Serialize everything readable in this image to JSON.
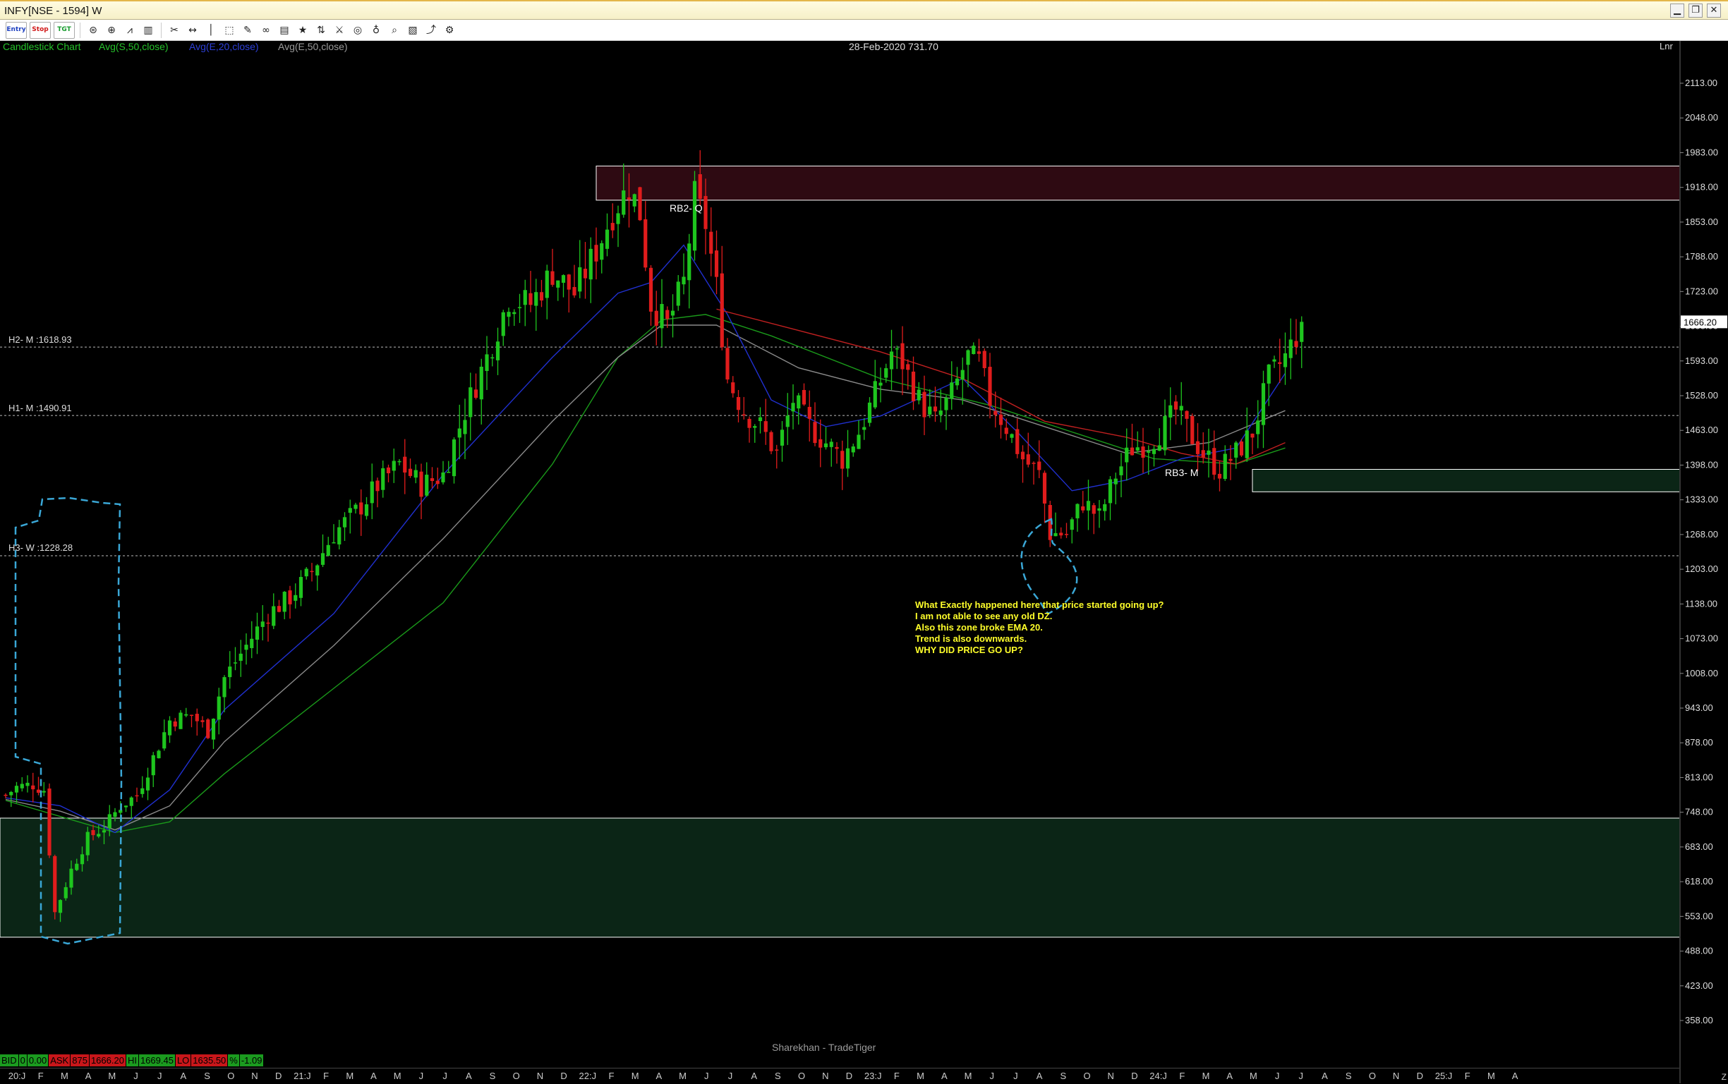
{
  "window": {
    "title": "INFY[NSE - 1594] W"
  },
  "toolbar": {
    "entry": "Entry",
    "stop": "Stop",
    "tgt": "TGT"
  },
  "legend": {
    "chart_type": "Candlestick Chart",
    "s50": "Avg(S,50,close)",
    "e20": "Avg(E,20,close)",
    "e50": "Avg(E,50,close)",
    "colors": {
      "chart_type": "#25c22a",
      "s50": "#25c22a",
      "e20": "#2d3fd8",
      "e50": "#9a9a9a"
    }
  },
  "header": {
    "date_price": "28-Feb-2020 731.70",
    "scale": "Lnr"
  },
  "price_axis": {
    "ticks": [
      "2113.00",
      "2048.00",
      "1983.00",
      "1918.00",
      "1853.00",
      "1788.00",
      "1723.00",
      "1658.00",
      "1593.00",
      "1528.00",
      "1463.00",
      "1398.00",
      "1333.00",
      "1268.00",
      "1203.00",
      "1138.00",
      "1073.00",
      "1008.00",
      "943.00",
      "878.00",
      "813.00",
      "748.00",
      "683.00",
      "618.00",
      "553.00",
      "488.00",
      "423.00",
      "358.00"
    ],
    "last_price": "1666.20"
  },
  "levels": [
    {
      "label": "H2- M :1618.93",
      "value": 1618.93
    },
    {
      "label": "H1- M :1490.91",
      "value": 1490.91
    },
    {
      "label": "H3- W :1228.28",
      "value": 1228.28
    }
  ],
  "zones": [
    {
      "name": "supply-zone-rb2",
      "label": "RB2- Q",
      "kind": "supply",
      "top": 1958,
      "bottom": 1894,
      "from": 108,
      "to": 310
    },
    {
      "name": "demand-zone-rb3",
      "label": "RB3- M",
      "kind": "demand",
      "top": 1390,
      "bottom": 1348,
      "from": 228,
      "to": 310
    },
    {
      "name": "demand-zone-base",
      "label": "",
      "kind": "demand",
      "top": 737,
      "bottom": 514,
      "from": 0,
      "to": 310
    }
  ],
  "annotation": {
    "lines": [
      "What Exactly happened here that price started going up?",
      "I am not able to see any old DZ.",
      "Also this zone broke EMA 20.",
      "Trend is also downwards.",
      "WHY DID PRICE GO UP?"
    ]
  },
  "brand": "Sharekhan - TradeTiger",
  "quotes": [
    {
      "text": "BID",
      "tone": "g"
    },
    {
      "text": "0",
      "tone": "g"
    },
    {
      "text": "0.00",
      "tone": "g"
    },
    {
      "text": "ASK",
      "tone": "r"
    },
    {
      "text": "875",
      "tone": "r"
    },
    {
      "text": "1666.20",
      "tone": "r"
    },
    {
      "text": "HI",
      "tone": "g"
    },
    {
      "text": "1669.45",
      "tone": "g"
    },
    {
      "text": "LO",
      "tone": "r"
    },
    {
      "text": "1635.50",
      "tone": "r"
    },
    {
      "text": "%",
      "tone": "g"
    },
    {
      "text": "-1.09",
      "tone": "g"
    }
  ],
  "time_axis": [
    "20:J",
    "F",
    "M",
    "A",
    "M",
    "J",
    "J",
    "A",
    "S",
    "O",
    "N",
    "D",
    "21:J",
    "F",
    "M",
    "A",
    "M",
    "J",
    "J",
    "A",
    "S",
    "O",
    "N",
    "D",
    "22:J",
    "F",
    "M",
    "A",
    "M",
    "J",
    "J",
    "A",
    "S",
    "O",
    "N",
    "D",
    "23:J",
    "F",
    "M",
    "A",
    "M",
    "J",
    "J",
    "A",
    "S",
    "O",
    "N",
    "D",
    "24:J",
    "F",
    "M",
    "A",
    "M",
    "J",
    "J",
    "A",
    "S",
    "O",
    "N",
    "D",
    "25:J",
    "F",
    "M",
    "A"
  ],
  "chart_data": {
    "type": "candlestick",
    "x_unit": "weeks (Jan 2020 onward)",
    "y_range": [
      320,
      2160
    ],
    "candles": [],
    "anchors": [
      [
        0,
        780
      ],
      [
        2,
        795
      ],
      [
        5,
        800
      ],
      [
        7,
        790
      ],
      [
        9,
        560
      ],
      [
        12,
        640
      ],
      [
        15,
        700
      ],
      [
        18,
        720
      ],
      [
        21,
        760
      ],
      [
        24,
        780
      ],
      [
        27,
        850
      ],
      [
        30,
        920
      ],
      [
        34,
        930
      ],
      [
        37,
        900
      ],
      [
        40,
        1000
      ],
      [
        44,
        1060
      ],
      [
        48,
        1120
      ],
      [
        52,
        1150
      ],
      [
        56,
        1200
      ],
      [
        60,
        1270
      ],
      [
        64,
        1310
      ],
      [
        68,
        1360
      ],
      [
        72,
        1400
      ],
      [
        76,
        1360
      ],
      [
        80,
        1380
      ],
      [
        84,
        1500
      ],
      [
        88,
        1600
      ],
      [
        92,
        1710
      ],
      [
        96,
        1700
      ],
      [
        100,
        1760
      ],
      [
        104,
        1720
      ],
      [
        108,
        1800
      ],
      [
        111,
        1870
      ],
      [
        114,
        1920
      ],
      [
        116,
        1870
      ],
      [
        118,
        1700
      ],
      [
        121,
        1660
      ],
      [
        124,
        1740
      ],
      [
        126,
        1900
      ],
      [
        128,
        1850
      ],
      [
        130,
        1730
      ],
      [
        132,
        1560
      ],
      [
        135,
        1500
      ],
      [
        138,
        1470
      ],
      [
        141,
        1420
      ],
      [
        144,
        1520
      ],
      [
        147,
        1470
      ],
      [
        150,
        1440
      ],
      [
        153,
        1410
      ],
      [
        156,
        1460
      ],
      [
        159,
        1530
      ],
      [
        162,
        1610
      ],
      [
        164,
        1590
      ],
      [
        167,
        1520
      ],
      [
        170,
        1480
      ],
      [
        173,
        1530
      ],
      [
        176,
        1600
      ],
      [
        178,
        1590
      ],
      [
        180,
        1520
      ],
      [
        183,
        1470
      ],
      [
        186,
        1410
      ],
      [
        189,
        1380
      ],
      [
        191,
        1270
      ],
      [
        194,
        1270
      ],
      [
        197,
        1330
      ],
      [
        200,
        1300
      ],
      [
        203,
        1380
      ],
      [
        206,
        1430
      ],
      [
        209,
        1440
      ],
      [
        212,
        1470
      ],
      [
        214,
        1500
      ],
      [
        217,
        1450
      ],
      [
        219,
        1420
      ],
      [
        222,
        1390
      ],
      [
        225,
        1420
      ],
      [
        228,
        1460
      ],
      [
        231,
        1560
      ],
      [
        234,
        1600
      ],
      [
        236,
        1640
      ],
      [
        237,
        1666
      ]
    ],
    "ma_s50": [
      [
        0,
        770
      ],
      [
        10,
        740
      ],
      [
        20,
        710
      ],
      [
        30,
        730
      ],
      [
        40,
        820
      ],
      [
        60,
        980
      ],
      [
        80,
        1140
      ],
      [
        100,
        1400
      ],
      [
        112,
        1600
      ],
      [
        120,
        1670
      ],
      [
        128,
        1680
      ],
      [
        140,
        1640
      ],
      [
        160,
        1560
      ],
      [
        180,
        1510
      ],
      [
        195,
        1460
      ],
      [
        210,
        1410
      ],
      [
        225,
        1400
      ],
      [
        234,
        1430
      ]
    ],
    "ma_e20": [
      [
        0,
        775
      ],
      [
        10,
        760
      ],
      [
        20,
        710
      ],
      [
        30,
        790
      ],
      [
        40,
        940
      ],
      [
        60,
        1120
      ],
      [
        80,
        1380
      ],
      [
        100,
        1600
      ],
      [
        112,
        1720
      ],
      [
        118,
        1740
      ],
      [
        124,
        1810
      ],
      [
        132,
        1680
      ],
      [
        140,
        1520
      ],
      [
        150,
        1470
      ],
      [
        160,
        1490
      ],
      [
        175,
        1560
      ],
      [
        185,
        1460
      ],
      [
        195,
        1350
      ],
      [
        205,
        1370
      ],
      [
        215,
        1410
      ],
      [
        225,
        1430
      ],
      [
        234,
        1570
      ]
    ],
    "ma_e50": [
      [
        0,
        772
      ],
      [
        10,
        750
      ],
      [
        20,
        715
      ],
      [
        30,
        760
      ],
      [
        40,
        880
      ],
      [
        60,
        1060
      ],
      [
        80,
        1260
      ],
      [
        100,
        1480
      ],
      [
        112,
        1600
      ],
      [
        120,
        1660
      ],
      [
        130,
        1660
      ],
      [
        145,
        1580
      ],
      [
        160,
        1540
      ],
      [
        175,
        1520
      ],
      [
        190,
        1470
      ],
      [
        205,
        1420
      ],
      [
        220,
        1440
      ],
      [
        234,
        1500
      ]
    ],
    "ma_red": [
      [
        130,
        1690
      ],
      [
        145,
        1650
      ],
      [
        160,
        1610
      ],
      [
        175,
        1560
      ],
      [
        190,
        1480
      ],
      [
        205,
        1450
      ],
      [
        215,
        1420
      ],
      [
        225,
        1400
      ],
      [
        234,
        1440
      ]
    ]
  }
}
